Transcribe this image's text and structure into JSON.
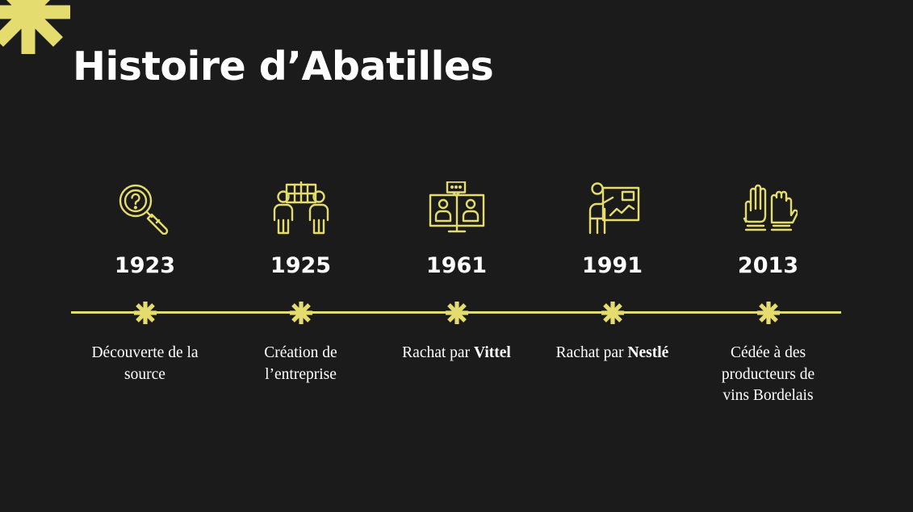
{
  "slide": {
    "title": "Histoire d’Abatilles",
    "accent_color": "#e4dc6e",
    "background_color": "#1b1b1b",
    "text_color": "#ffffff",
    "decoration_icon": "asterisk-icon"
  },
  "timeline": {
    "milestones": [
      {
        "year": "1923",
        "icon": "magnifier-question-icon",
        "caption_lines": [
          "Découverte de la",
          "source"
        ]
      },
      {
        "year": "1925",
        "icon": "team-board-icon",
        "caption_lines": [
          "Création de",
          "l’entreprise"
        ]
      },
      {
        "year": "1961",
        "icon": "video-meeting-icon",
        "caption_prefix": "Rachat par ",
        "caption_bold": "Vittel"
      },
      {
        "year": "1991",
        "icon": "presentation-icon",
        "caption_prefix": "Rachat par ",
        "caption_bold": "Nestlé"
      },
      {
        "year": "2013",
        "icon": "raised-hands-icon",
        "caption_lines": [
          "Cédée à des",
          "producteurs de",
          "vins Bordelais"
        ]
      }
    ]
  }
}
